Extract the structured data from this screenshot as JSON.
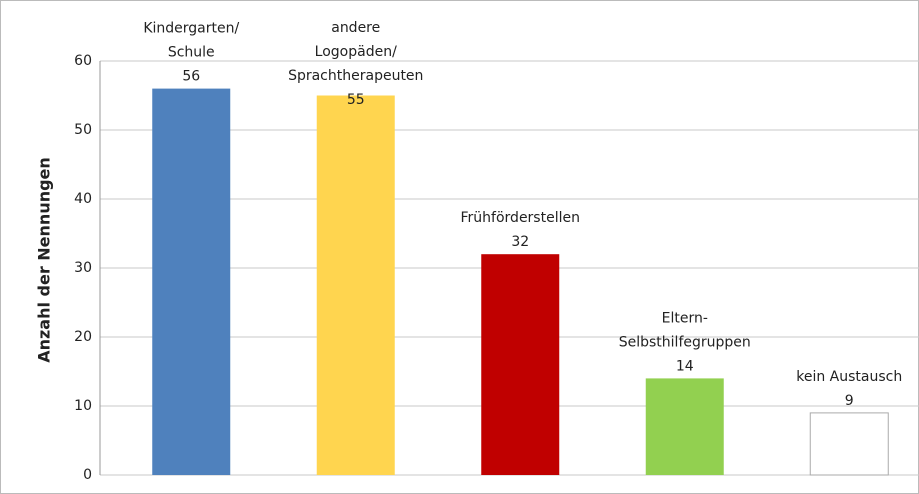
{
  "chart_data": {
    "type": "bar",
    "y_label": "Anzahl der Nennungen",
    "categories": [
      [
        "Kindergarten/",
        "Schule"
      ],
      [
        "andere",
        "Logopäden/",
        "Sprachtherapeuten"
      ],
      [
        "Frühförderstellen"
      ],
      [
        "Eltern-",
        "Selbsthilfegruppen"
      ],
      [
        "kein Austausch"
      ]
    ],
    "values": [
      56,
      55,
      32,
      14,
      9
    ],
    "colors": [
      "#4f81bd",
      "#ffd54f",
      "#c00000",
      "#92d050",
      "#ffffff"
    ],
    "ylim": [
      0,
      60
    ],
    "yticks": [
      0,
      10,
      20,
      30,
      40,
      50,
      60
    ],
    "grid": true
  }
}
